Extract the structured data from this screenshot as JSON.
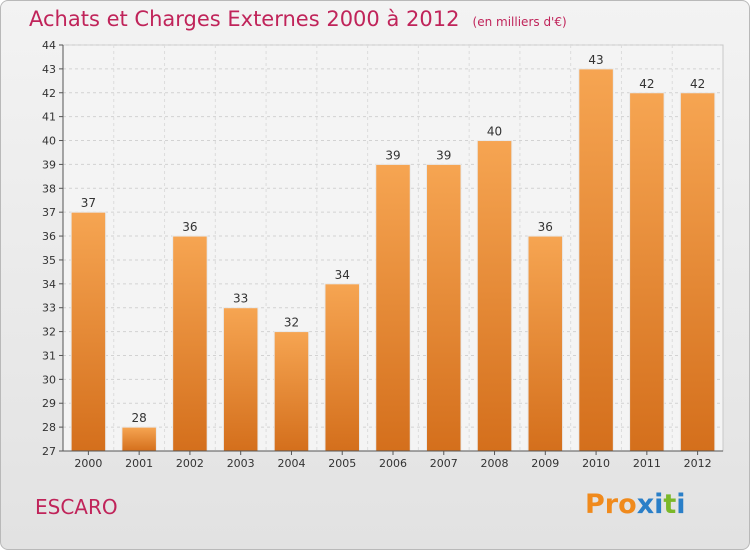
{
  "header": {
    "title": "Achats et Charges Externes 2000 à 2012",
    "subtitle": "(en milliers d'€)"
  },
  "footer": {
    "commune": "ESCARO",
    "logo_text": "Proxiti"
  },
  "colors": {
    "title": "#c0245a",
    "bar_top": "#f6a552",
    "bar_bottom": "#d46f1c",
    "logo": [
      "#f08a1c",
      "#f08a1c",
      "#f08a1c",
      "#2a7fc8",
      "#2a7fc8",
      "#7bb829",
      "#2a7fc8"
    ]
  },
  "chart_data": {
    "type": "bar",
    "title": "Achats et Charges Externes 2000 à 2012",
    "subtitle": "(en milliers d'€)",
    "categories": [
      "2000",
      "2001",
      "2002",
      "2003",
      "2004",
      "2005",
      "2006",
      "2007",
      "2008",
      "2009",
      "2010",
      "2011",
      "2012"
    ],
    "values": [
      37,
      28,
      36,
      33,
      32,
      34,
      39,
      39,
      40,
      36,
      43,
      42,
      42
    ],
    "ylim": [
      27,
      44
    ],
    "yticks": [
      27,
      28,
      29,
      30,
      31,
      32,
      33,
      34,
      35,
      36,
      37,
      38,
      39,
      40,
      41,
      42,
      43,
      44
    ],
    "grid": true,
    "legend": "none"
  }
}
